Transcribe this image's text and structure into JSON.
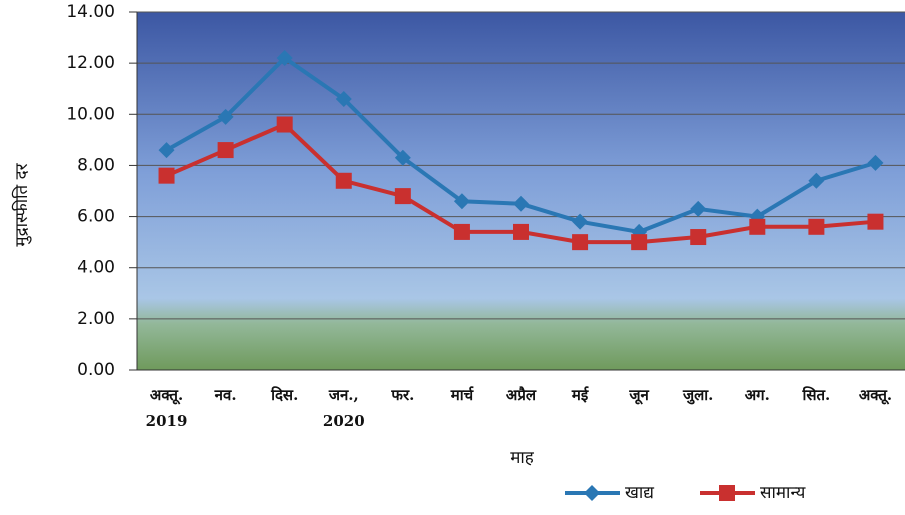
{
  "chart_data": {
    "type": "line",
    "categories": [
      "अक्तू. 2019",
      "नव.",
      "दिस.",
      "जन., 2020",
      "फर.",
      "मार्च",
      "अप्रैल",
      "मई",
      "जून",
      "जुला.",
      "अग.",
      "सित.",
      "अक्तू."
    ],
    "series": [
      {
        "name": "खाद्य",
        "color": "#2a77b4",
        "marker": "diamond",
        "values": [
          8.6,
          9.9,
          12.2,
          10.6,
          8.3,
          6.6,
          6.5,
          5.8,
          5.4,
          6.3,
          6.0,
          7.4,
          8.1
        ]
      },
      {
        "name": "सामान्य",
        "color": "#c9302f",
        "marker": "square",
        "values": [
          7.6,
          8.6,
          9.6,
          7.4,
          6.8,
          5.4,
          5.4,
          5.0,
          5.0,
          5.2,
          5.6,
          5.6,
          5.8
        ]
      }
    ],
    "ylim": [
      0,
      14
    ],
    "yticks": [
      {
        "value": 0,
        "label": "0.00"
      },
      {
        "value": 2,
        "label": "2.00"
      },
      {
        "value": 4,
        "label": "4.00"
      },
      {
        "value": 6,
        "label": "6.00"
      },
      {
        "value": 8,
        "label": "8.00"
      },
      {
        "value": 10,
        "label": "10.00"
      },
      {
        "value": 12,
        "label": "12.00"
      },
      {
        "value": 14,
        "label": "14.00"
      }
    ],
    "ylabel": "मुद्रास्फीति दर",
    "xlabel": "माह",
    "grid": true,
    "legend": "bottom-right"
  }
}
